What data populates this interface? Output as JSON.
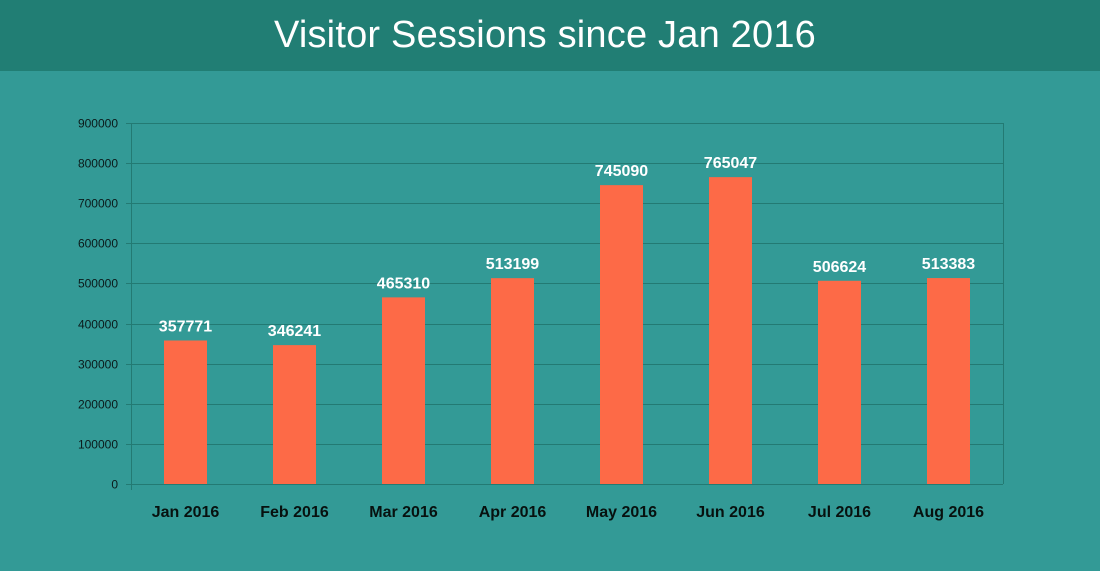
{
  "chart_data": {
    "type": "bar",
    "title": "Visitor Sessions since Jan 2016",
    "xlabel": "",
    "ylabel": "",
    "categories": [
      "Jan 2016",
      "Feb 2016",
      "Mar 2016",
      "Apr 2016",
      "May 2016",
      "Jun 2016",
      "Jul 2016",
      "Aug 2016"
    ],
    "values": [
      357771,
      346241,
      465310,
      513199,
      745090,
      765047,
      506624,
      513383
    ],
    "data_labels": [
      "357771",
      "346241",
      "465310",
      "513199",
      "745090",
      "765047",
      "506624",
      "513383"
    ],
    "ylim": [
      0,
      900000
    ],
    "yticks": [
      0,
      100000,
      200000,
      300000,
      400000,
      500000,
      600000,
      700000,
      800000,
      900000
    ],
    "ytick_labels": [
      "0",
      "100000",
      "200000",
      "300000",
      "400000",
      "500000",
      "600000",
      "700000",
      "800000",
      "900000"
    ],
    "grid": true,
    "legend": "none",
    "colors": {
      "bar": "#fd6a47",
      "background": "#339a96",
      "header": "#217e74",
      "gridline": "#237a73",
      "title_text": "#ffffff",
      "data_label_text": "#ffffff",
      "axis_text": "#0b1a1a"
    }
  }
}
